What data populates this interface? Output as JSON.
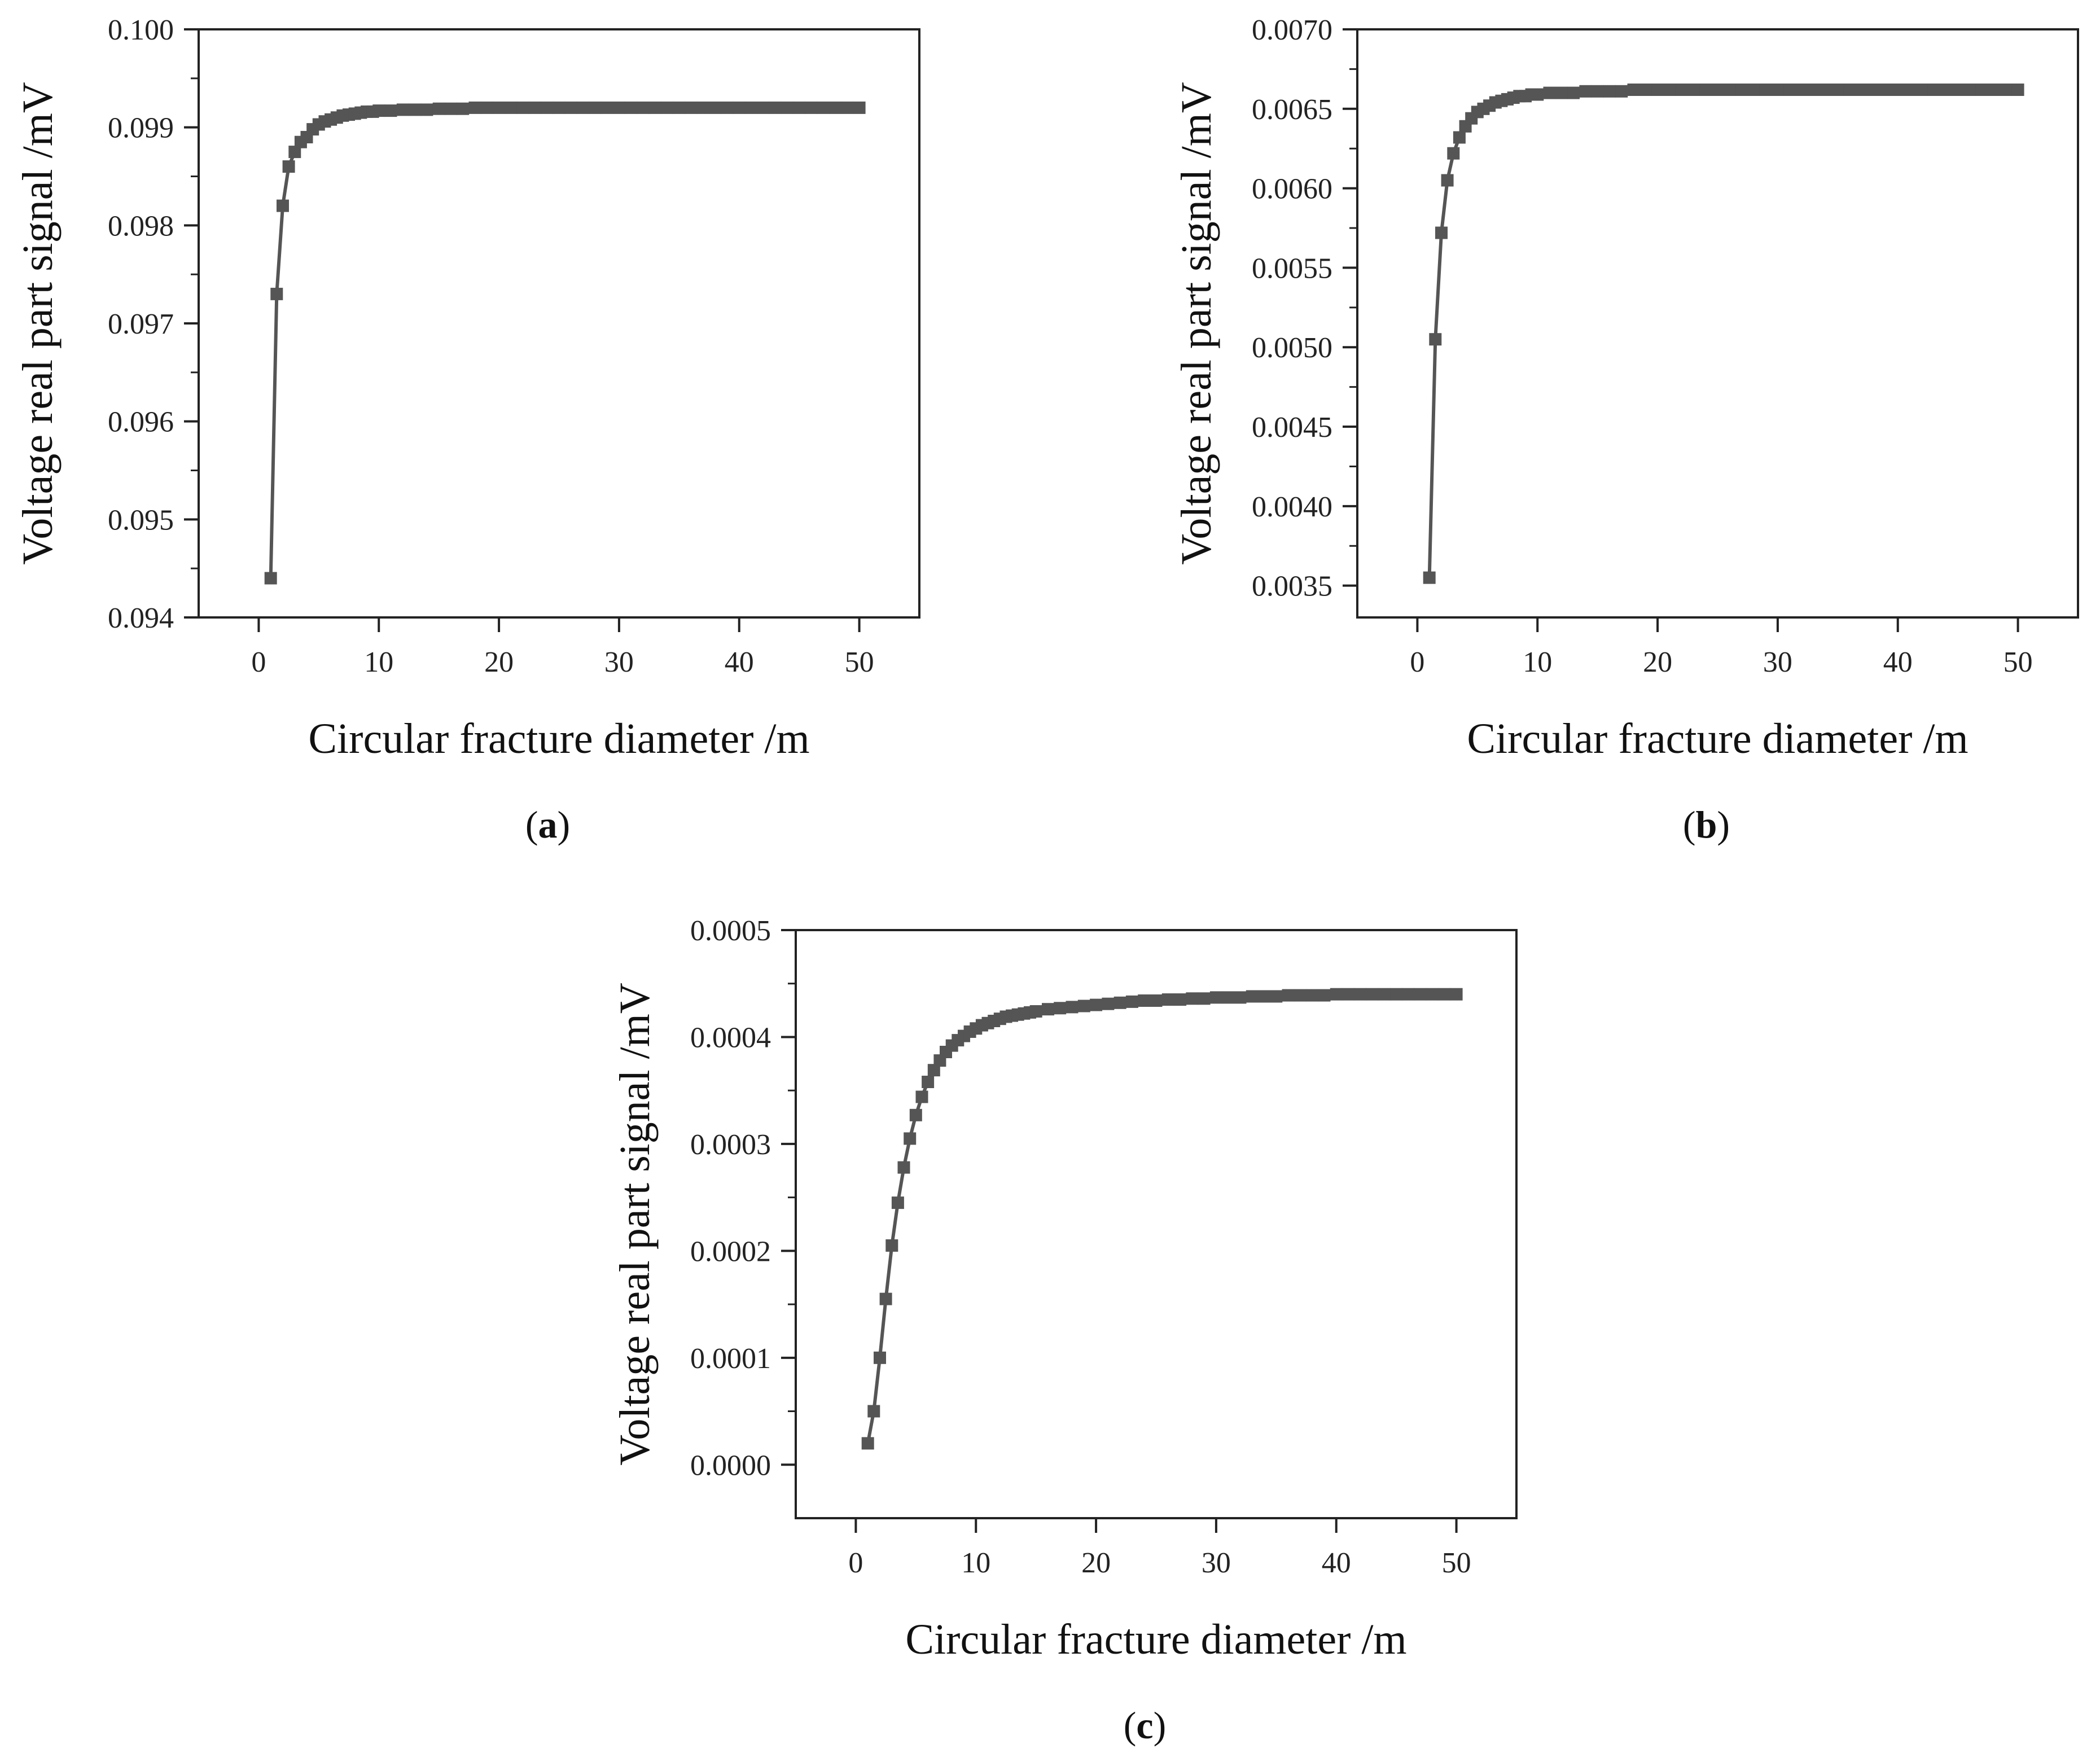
{
  "chart_data": [
    {
      "id": "a",
      "panel_label": "a",
      "type": "line",
      "xlabel": "Circular fracture diameter  /m",
      "ylabel": "Voltage real part signal /mV",
      "xlim": [
        -5,
        55
      ],
      "ylim": [
        0.094,
        0.1
      ],
      "xticks": [
        "0",
        "10",
        "20",
        "30",
        "40",
        "50"
      ],
      "yticks": [
        "0.094",
        "0.095",
        "0.096",
        "0.097",
        "0.098",
        "0.099",
        "0.100"
      ],
      "grid": false,
      "legend": "none",
      "series": [
        {
          "marker": "square",
          "color": "#555555",
          "x": [
            1,
            1.5,
            2,
            2.5,
            3,
            3.5,
            4,
            4.5,
            5,
            5.5,
            6,
            6.5,
            7,
            7.5,
            8,
            8.5,
            9,
            9.5,
            10,
            11,
            12,
            13,
            14,
            15,
            16,
            17,
            18,
            19,
            20,
            21,
            22,
            23,
            24,
            25,
            26,
            27,
            28,
            29,
            30,
            31,
            32,
            33,
            34,
            35,
            36,
            37,
            38,
            39,
            40,
            41,
            42,
            43,
            44,
            45,
            46,
            47,
            48,
            49,
            50
          ],
          "y": [
            0.0944,
            0.0973,
            0.0982,
            0.0986,
            0.09875,
            0.09885,
            0.0989,
            0.09898,
            0.09903,
            0.09906,
            0.09908,
            0.0991,
            0.09912,
            0.09913,
            0.09914,
            0.09915,
            0.09916,
            0.09916,
            0.09917,
            0.09917,
            0.09918,
            0.09918,
            0.09918,
            0.09919,
            0.09919,
            0.09919,
            0.0992,
            0.0992,
            0.0992,
            0.0992,
            0.0992,
            0.0992,
            0.0992,
            0.0992,
            0.0992,
            0.0992,
            0.0992,
            0.0992,
            0.0992,
            0.0992,
            0.0992,
            0.0992,
            0.0992,
            0.0992,
            0.0992,
            0.0992,
            0.0992,
            0.0992,
            0.0992,
            0.0992,
            0.0992,
            0.0992,
            0.0992,
            0.0992,
            0.0992,
            0.0992,
            0.0992,
            0.0992,
            0.0992
          ]
        }
      ]
    },
    {
      "id": "b",
      "panel_label": "b",
      "type": "line",
      "xlabel": "Circular fracture diameter  /m",
      "ylabel": "Voltage real part signal /mV",
      "xlim": [
        -5,
        55
      ],
      "ylim": [
        0.0033,
        0.007
      ],
      "xticks": [
        "0",
        "10",
        "20",
        "30",
        "40",
        "50"
      ],
      "yticks": [
        "0.0035",
        "0.0040",
        "0.0045",
        "0.0050",
        "0.0055",
        "0.0060",
        "0.0065",
        "0.0070"
      ],
      "grid": false,
      "legend": "none",
      "series": [
        {
          "marker": "square",
          "color": "#555555",
          "x": [
            1,
            1.5,
            2,
            2.5,
            3,
            3.5,
            4,
            4.5,
            5,
            5.5,
            6,
            6.5,
            7,
            7.5,
            8,
            8.5,
            9,
            9.5,
            10,
            11,
            12,
            13,
            14,
            15,
            16,
            17,
            18,
            19,
            20,
            21,
            22,
            23,
            24,
            25,
            26,
            27,
            28,
            29,
            30,
            31,
            32,
            33,
            34,
            35,
            36,
            37,
            38,
            39,
            40,
            41,
            42,
            43,
            44,
            45,
            46,
            47,
            48,
            49,
            50
          ],
          "y": [
            0.00355,
            0.00505,
            0.00572,
            0.00605,
            0.00622,
            0.00632,
            0.00639,
            0.00644,
            0.00648,
            0.0065,
            0.00652,
            0.00654,
            0.00655,
            0.00656,
            0.00657,
            0.00658,
            0.00658,
            0.00659,
            0.00659,
            0.0066,
            0.0066,
            0.0066,
            0.00661,
            0.00661,
            0.00661,
            0.00661,
            0.00662,
            0.00662,
            0.00662,
            0.00662,
            0.00662,
            0.00662,
            0.00662,
            0.00662,
            0.00662,
            0.00662,
            0.00662,
            0.00662,
            0.00662,
            0.00662,
            0.00662,
            0.00662,
            0.00662,
            0.00662,
            0.00662,
            0.00662,
            0.00662,
            0.00662,
            0.00662,
            0.00662,
            0.00662,
            0.00662,
            0.00662,
            0.00662,
            0.00662,
            0.00662,
            0.00662,
            0.00662,
            0.00662
          ]
        }
      ]
    },
    {
      "id": "c",
      "panel_label": "c",
      "type": "line",
      "xlabel": "Circular fracture diameter  /m",
      "ylabel": "Voltage real part signal /mV",
      "xlim": [
        -5,
        55
      ],
      "ylim": [
        -5e-05,
        0.0005
      ],
      "xticks": [
        "0",
        "10",
        "20",
        "30",
        "40",
        "50"
      ],
      "yticks": [
        "0.0000",
        "0.0001",
        "0.0002",
        "0.0003",
        "0.0004",
        "0.0005"
      ],
      "grid": false,
      "legend": "none",
      "series": [
        {
          "marker": "square",
          "color": "#555555",
          "x": [
            1,
            1.5,
            2,
            2.5,
            3,
            3.5,
            4,
            4.5,
            5,
            5.5,
            6,
            6.5,
            7,
            7.5,
            8,
            8.5,
            9,
            9.5,
            10,
            10.5,
            11,
            11.5,
            12,
            12.5,
            13,
            13.5,
            14,
            14.5,
            15,
            16,
            17,
            18,
            19,
            20,
            21,
            22,
            23,
            24,
            25,
            26,
            27,
            28,
            29,
            30,
            31,
            32,
            33,
            34,
            35,
            36,
            37,
            38,
            39,
            40,
            41,
            42,
            43,
            44,
            45,
            46,
            47,
            48,
            49,
            50
          ],
          "y": [
            2e-05,
            5e-05,
            0.0001,
            0.000155,
            0.000205,
            0.000245,
            0.000278,
            0.000305,
            0.000327,
            0.000344,
            0.000358,
            0.000369,
            0.000378,
            0.000386,
            0.000392,
            0.000397,
            0.000401,
            0.000405,
            0.000408,
            0.000411,
            0.000413,
            0.000415,
            0.000417,
            0.000419,
            0.00042,
            0.000421,
            0.000422,
            0.000423,
            0.000424,
            0.000426,
            0.000427,
            0.000428,
            0.000429,
            0.00043,
            0.000431,
            0.000432,
            0.000433,
            0.000434,
            0.000434,
            0.000435,
            0.000435,
            0.000436,
            0.000436,
            0.000437,
            0.000437,
            0.000437,
            0.000438,
            0.000438,
            0.000438,
            0.000439,
            0.000439,
            0.000439,
            0.000439,
            0.00044,
            0.00044,
            0.00044,
            0.00044,
            0.00044,
            0.00044,
            0.00044,
            0.00044,
            0.00044,
            0.00044,
            0.00044
          ]
        }
      ]
    }
  ]
}
